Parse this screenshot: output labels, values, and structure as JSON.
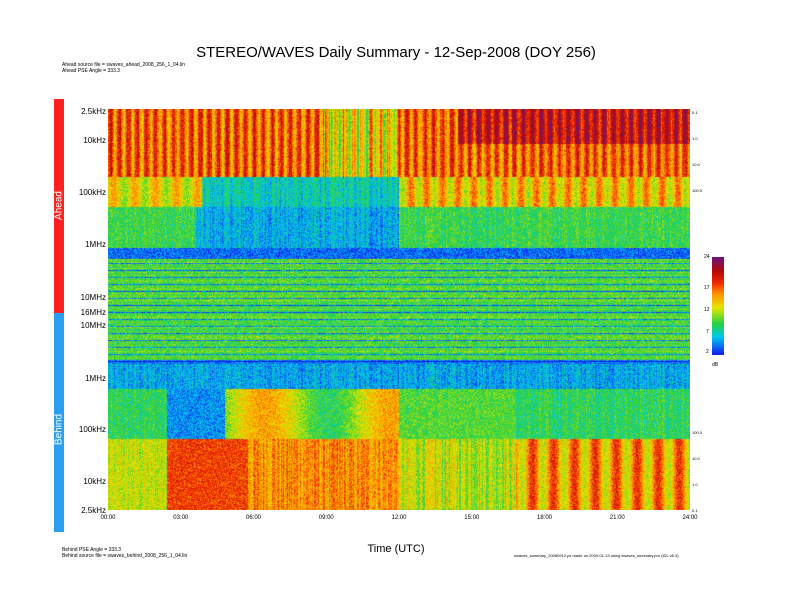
{
  "title": "STEREO/WAVES Daily Summary - 12-Sep-2008 (DOY 256)",
  "ahead_source": "Ahead source file = swaves_ahead_2008_256_1_04.lin",
  "ahead_pse": "Ahead PSE Angle = 333.3",
  "behind_pse": "Behind PSE Angle = 333.3",
  "behind_source": "Behind source file = swaves_behind_2008_256_1_04.lin",
  "credit": "swaves_summary_20080912.ps  made on 2009-01-13 using swaves_summary.pro (IDL v6.3)",
  "colors": {
    "ahead": "#ff2020",
    "behind": "#2a9df4"
  },
  "chart_data": {
    "type": "heatmap",
    "xlabel": "Time (UTC)",
    "x_ticks": [
      "00:00",
      "03:00",
      "06:00",
      "09:00",
      "12:00",
      "15:00",
      "18:00",
      "21:00",
      "24:00"
    ],
    "panels": [
      {
        "name": "Ahead",
        "y_ticks": [
          "2.5kHz",
          "10kHz",
          "100kHz",
          "1MHz",
          "10MHz",
          "16MHz"
        ],
        "y_scale": "log"
      },
      {
        "name": "Behind",
        "y_ticks": [
          "10MHz",
          "1MHz",
          "100kHz",
          "10kHz",
          "2.5kHz"
        ],
        "y_scale": "log"
      }
    ],
    "colorbar": {
      "unit": "dB",
      "ticks": [
        "24",
        "17",
        "12",
        "7",
        "2"
      ],
      "range": [
        2,
        24
      ]
    },
    "right_axis_ahead": [
      "0.1",
      "1.0",
      "10.0",
      "100.0"
    ],
    "right_axis_behind": [
      "100.0",
      "10.0",
      "1.0",
      "0.1"
    ]
  }
}
